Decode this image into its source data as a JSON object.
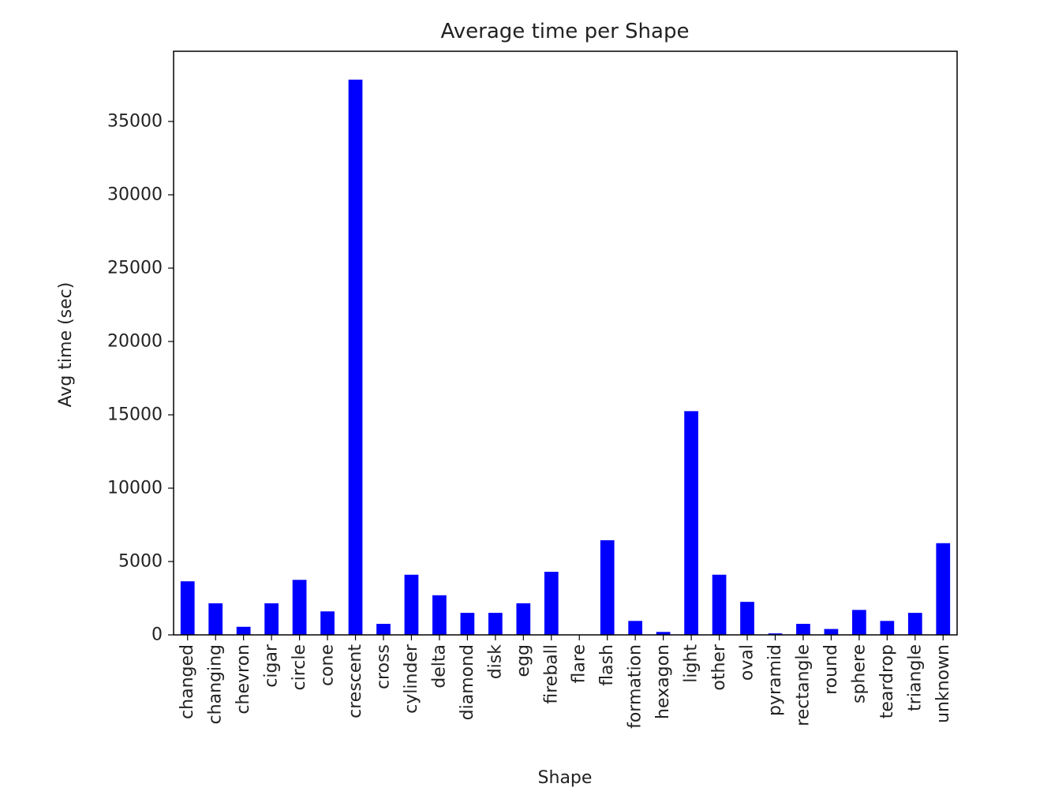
{
  "chart_data": {
    "type": "bar",
    "title": "Average time per Shape",
    "xlabel": "Shape",
    "ylabel": "Avg time (sec)",
    "ylim": [
      0,
      40000
    ],
    "yticks": [
      0,
      5000,
      10000,
      15000,
      20000,
      25000,
      30000,
      35000
    ],
    "grid": false,
    "bar_color": "#0000ff",
    "categories": [
      "changed",
      "changing",
      "chevron",
      "cigar",
      "circle",
      "cone",
      "crescent",
      "cross",
      "cylinder",
      "delta",
      "diamond",
      "disk",
      "egg",
      "fireball",
      "flare",
      "flash",
      "formation",
      "hexagon",
      "light",
      "other",
      "oval",
      "pyramid",
      "rectangle",
      "round",
      "sphere",
      "teardrop",
      "triangle",
      "unknown"
    ],
    "values": [
      3650,
      2150,
      550,
      2150,
      3750,
      1600,
      37850,
      750,
      4100,
      2700,
      1500,
      1500,
      2150,
      4300,
      0,
      6450,
      950,
      200,
      15250,
      4100,
      2250,
      100,
      750,
      400,
      1700,
      950,
      1500,
      6250
    ]
  }
}
